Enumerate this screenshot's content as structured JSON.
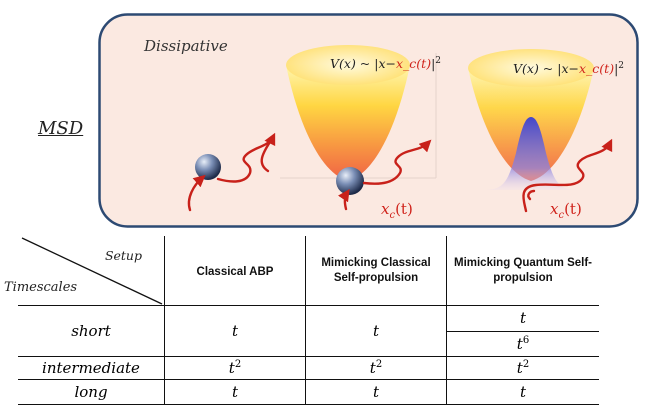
{
  "diagram": {
    "left_label": "MSD",
    "panel_label": "Dissipative",
    "potential_equation_1": {
      "pre": "V(x) ~ |x−",
      "red": "x_c(t)",
      "post": "|",
      "sup": "2"
    },
    "potential_equation_2": {
      "pre": "V(x) ~ |x−",
      "red": "x_c(t)",
      "post": "|",
      "sup": "2"
    },
    "trap_center_label_1": {
      "x": "x",
      "sub": "c",
      "t": "(t)"
    },
    "trap_center_label_2": {
      "x": "x",
      "sub": "c",
      "t": "(t)"
    },
    "colors": {
      "panel_bg": "#fbe9e1",
      "panel_border": "#2d4a73",
      "trajectory": "#c8211a",
      "wavepacket": "#6a6ad8"
    }
  },
  "table": {
    "corner_top": "Setup",
    "corner_bottom": "Timescales",
    "columns": [
      "Classical ABP",
      "Mimicking Classical Self-propulsion",
      "Mimicking Quantum Self-propulsion"
    ],
    "rows": [
      {
        "label": "short",
        "c1": "t",
        "c2": "t",
        "c3a": "t",
        "c3b_base": "t",
        "c3b_exp": "6"
      },
      {
        "label": "intermediate",
        "c1_base": "t",
        "c1_exp": "2",
        "c2_base": "t",
        "c2_exp": "2",
        "c3_base": "t",
        "c3_exp": "2"
      },
      {
        "label": "long",
        "c1": "t",
        "c2": "t",
        "c3": "t"
      }
    ]
  }
}
